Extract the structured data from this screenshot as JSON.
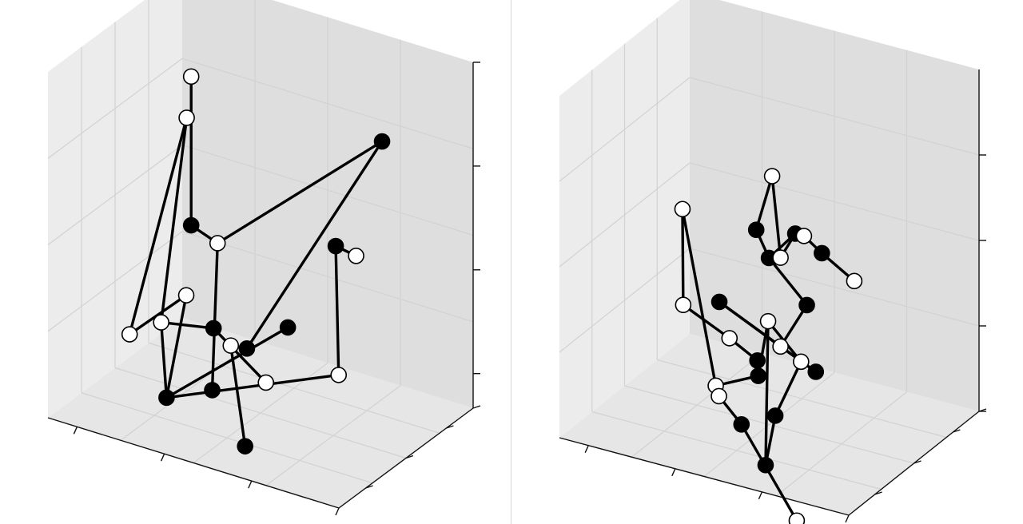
{
  "chart_data": [
    {
      "type": "scatter",
      "title": "",
      "xlabel": "",
      "ylabel": "",
      "zlabel": "",
      "grid": true,
      "projection": "3d",
      "marker_fill_legend": [
        "filled",
        "hollow"
      ],
      "colors": {
        "line": "#000000",
        "filled": "#000000",
        "hollow": "#ffffff",
        "pane_left": "#ececec",
        "pane_right": "#dedede",
        "floor": "#e6e6e6",
        "grid": "#d2d2d2"
      },
      "nodes": [
        {
          "x": 0.34,
          "y": 0.33,
          "z": 0.98,
          "filled": false
        },
        {
          "x": 0.34,
          "y": 0.33,
          "z": 0.55,
          "filled": true
        },
        {
          "x": 0.44,
          "y": 0.31,
          "z": 0.53,
          "filled": false
        },
        {
          "x": 0.93,
          "y": 0.28,
          "z": 0.63,
          "filled": false
        },
        {
          "x": 0.86,
          "y": 0.28,
          "z": 0.64,
          "filled": true
        },
        {
          "x": 0.87,
          "y": 0.28,
          "z": 0.27,
          "filled": false
        },
        {
          "x": 0.38,
          "y": 0.06,
          "z": 0.14,
          "filled": true
        },
        {
          "x": 0.02,
          "y": 0.8,
          "z": 0.05,
          "filled": false
        },
        {
          "x": 0.05,
          "y": 0.5,
          "z": 0.11,
          "filled": false
        },
        {
          "x": 0.08,
          "y": 0.86,
          "z": 0.64,
          "filled": false
        },
        {
          "x": 0.2,
          "y": 0.8,
          "z": 0.08,
          "filled": true
        },
        {
          "x": 0.38,
          "y": 0.8,
          "z": -0.03,
          "filled": false
        },
        {
          "x": 0.06,
          "y": 0.9,
          "z": 0.11,
          "filled": false
        },
        {
          "x": 0.4,
          "y": 0.92,
          "z": 0.1,
          "filled": true
        },
        {
          "x": 0.49,
          "y": 0.3,
          "z": 0.25,
          "filled": false
        },
        {
          "x": 0.55,
          "y": 0.29,
          "z": 0.26,
          "filled": true
        },
        {
          "x": 0.5,
          "y": 0.14,
          "z": 0.17,
          "filled": true
        },
        {
          "x": 0.65,
          "y": 0.06,
          "z": 0.07,
          "filled": true
        },
        {
          "x": 0.71,
          "y": 0.95,
          "z": 0.71,
          "filled": true
        }
      ],
      "edges": [
        [
          0,
          1
        ],
        [
          1,
          2
        ],
        [
          2,
          18
        ],
        [
          18,
          15
        ],
        [
          15,
          14
        ],
        [
          14,
          17
        ],
        [
          2,
          16
        ],
        [
          4,
          3
        ],
        [
          4,
          5
        ],
        [
          5,
          6
        ],
        [
          6,
          7
        ],
        [
          7,
          10
        ],
        [
          10,
          11
        ],
        [
          9,
          8
        ],
        [
          9,
          7
        ],
        [
          8,
          12
        ],
        [
          12,
          6
        ],
        [
          6,
          13
        ]
      ],
      "x_ticks": [
        0.1,
        0.4,
        0.7,
        1.0
      ],
      "y_ticks": [
        0.2,
        0.5,
        0.8,
        1.0
      ],
      "z_ticks": [
        0.1,
        0.4,
        0.7,
        1.0
      ],
      "view": {
        "elev": 20,
        "azim": -65
      }
    },
    {
      "type": "scatter",
      "title": "",
      "xlabel": "",
      "ylabel": "",
      "zlabel": "",
      "grid": true,
      "projection": "3d",
      "marker_fill_legend": [
        "filled",
        "hollow"
      ],
      "colors": {
        "line": "#000000",
        "filled": "#000000",
        "hollow": "#ffffff",
        "pane_left": "#ececec",
        "pane_right": "#dedede",
        "floor": "#e6e6e6",
        "grid": "#d2d2d2"
      },
      "nodes": [
        {
          "x": 0.6,
          "y": 0.3,
          "z": 0.81,
          "filled": false
        },
        {
          "x": 0.5,
          "y": 0.4,
          "z": 0.6,
          "filled": true
        },
        {
          "x": 0.58,
          "y": 0.32,
          "z": 0.56,
          "filled": true
        },
        {
          "x": 0.62,
          "y": 0.32,
          "z": 0.57,
          "filled": false
        },
        {
          "x": 0.68,
          "y": 0.3,
          "z": 0.66,
          "filled": true
        },
        {
          "x": 0.71,
          "y": 0.3,
          "z": 0.66,
          "filled": false
        },
        {
          "x": 0.79,
          "y": 0.26,
          "z": 0.64,
          "filled": true
        },
        {
          "x": 0.92,
          "y": 0.22,
          "z": 0.6,
          "filled": false
        },
        {
          "x": 0.72,
          "y": 0.3,
          "z": 0.46,
          "filled": true
        },
        {
          "x": 0.35,
          "y": 0.45,
          "z": 0.34,
          "filled": true
        },
        {
          "x": 0.55,
          "y": 0.38,
          "z": 0.35,
          "filled": false
        },
        {
          "x": 0.62,
          "y": 0.32,
          "z": 0.31,
          "filled": false
        },
        {
          "x": 0.7,
          "y": 0.3,
          "z": 0.29,
          "filled": false
        },
        {
          "x": 0.76,
          "y": 0.28,
          "z": 0.28,
          "filled": true
        },
        {
          "x": 0.62,
          "y": 0.28,
          "z": 0.12,
          "filled": true
        },
        {
          "x": 0.6,
          "y": 0.25,
          "z": -0.02,
          "filled": true
        },
        {
          "x": 0.48,
          "y": 0.46,
          "z": 0.15,
          "filled": true
        },
        {
          "x": 0.45,
          "y": 0.52,
          "z": 0.17,
          "filled": true
        },
        {
          "x": 0.02,
          "y": 0.9,
          "z": 0.4,
          "filled": false
        },
        {
          "x": 0.0,
          "y": 0.95,
          "z": 0.1,
          "filled": false
        },
        {
          "x": 0.25,
          "y": 0.75,
          "z": 0.12,
          "filled": false
        },
        {
          "x": 0.18,
          "y": 0.8,
          "z": -0.05,
          "filled": false
        },
        {
          "x": 0.2,
          "y": 0.78,
          "z": -0.07,
          "filled": false
        },
        {
          "x": 0.35,
          "y": 0.62,
          "z": -0.07,
          "filled": true
        },
        {
          "x": 0.55,
          "y": 0.6,
          "z": -0.3,
          "filled": false
        }
      ],
      "edges": [
        [
          0,
          1
        ],
        [
          1,
          2
        ],
        [
          0,
          3
        ],
        [
          3,
          4
        ],
        [
          2,
          4
        ],
        [
          4,
          5
        ],
        [
          5,
          6
        ],
        [
          6,
          7
        ],
        [
          2,
          8
        ],
        [
          8,
          11
        ],
        [
          11,
          13
        ],
        [
          10,
          15
        ],
        [
          15,
          14
        ],
        [
          14,
          12
        ],
        [
          12,
          10
        ],
        [
          9,
          11
        ],
        [
          9,
          13
        ],
        [
          16,
          10
        ],
        [
          17,
          16
        ],
        [
          18,
          19
        ],
        [
          18,
          21
        ],
        [
          19,
          20
        ],
        [
          20,
          17
        ],
        [
          21,
          16
        ],
        [
          22,
          23
        ],
        [
          23,
          24
        ]
      ],
      "x_ticks": [
        0.1,
        0.4,
        0.7,
        1.0
      ],
      "y_ticks": [
        0.2,
        0.5,
        0.8,
        1.0
      ],
      "z_ticks": [
        0.0,
        0.25,
        0.5,
        0.75
      ],
      "view": {
        "elev": 20,
        "azim": -65
      }
    }
  ]
}
